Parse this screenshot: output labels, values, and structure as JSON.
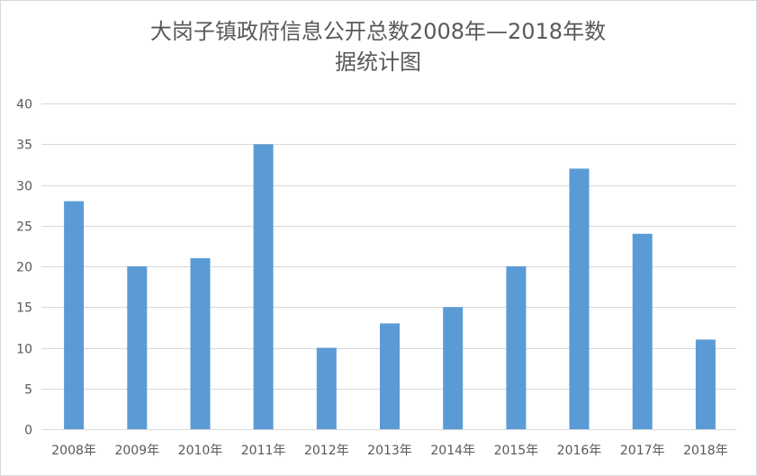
{
  "chart_data": {
    "type": "bar",
    "title_lines": [
      "大岗子镇政府信息公开总数2008年—2018年数",
      "据统计图"
    ],
    "categories": [
      "2008年",
      "2009年",
      "2010年",
      "2011年",
      "2012年",
      "2013年",
      "2014年",
      "2015年",
      "2016年",
      "2017年",
      "2018年"
    ],
    "values": [
      28,
      20,
      21,
      35,
      10,
      13,
      15,
      20,
      32,
      24,
      11
    ],
    "ylim": [
      0,
      40
    ],
    "yticks": [
      0,
      5,
      10,
      15,
      20,
      25,
      30,
      35,
      40
    ],
    "grid": true,
    "legend": "none",
    "colors": {
      "bar": "#5b9bd5",
      "grid": "#d9d9d9",
      "axis_text": "#595959"
    }
  }
}
